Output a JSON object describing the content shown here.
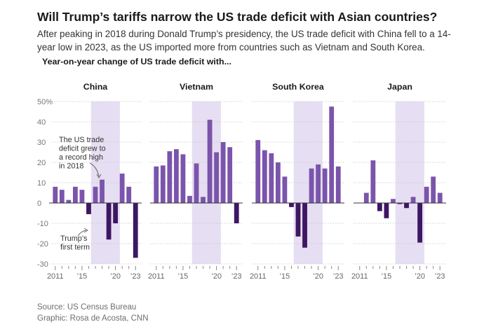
{
  "page": {
    "title": "Will Trump’s tariffs narrow the US trade deficit with Asian countries?",
    "subtitle": "After peaking in 2018 during Donald Trump’s presidency, the US trade deficit with China fell to a 14-year low in 2023, as the US imported more from countries such as Vietnam and South Korea.",
    "section_label": "Year-on-year change of US trade deficit with...",
    "source": "Source: US Census Bureau",
    "credit": "Graphic: Rosa de Acosta, CNN"
  },
  "colors": {
    "positive": "#7b54ab",
    "negative": "#3d1763",
    "shade": "#e6def2"
  },
  "chart_data": {
    "type": "bar",
    "x": [
      2011,
      2012,
      2013,
      2014,
      2015,
      2016,
      2017,
      2018,
      2019,
      2020,
      2021,
      2022,
      2023
    ],
    "ylim": [
      -30,
      50
    ],
    "yticks": [
      50,
      40,
      30,
      20,
      10,
      0,
      -10,
      -20,
      -30
    ],
    "ytick_labels": [
      "50%",
      "40",
      "30",
      "20",
      "10",
      "0",
      "-10",
      "-20",
      "-30"
    ],
    "xtick_labels_first": [
      "2011",
      "’15",
      "’20",
      "’23"
    ],
    "xtick_labels": [
      "2011",
      "’15",
      "’20",
      "’23"
    ],
    "xtick_years": [
      2011,
      2015,
      2020,
      2023
    ],
    "shade_years": [
      2017,
      2020
    ],
    "series": [
      {
        "name": "China",
        "values": [
          8,
          6.5,
          1.5,
          8,
          6.5,
          -5.5,
          8,
          11.5,
          -18,
          -10,
          14.5,
          8,
          -27
        ]
      },
      {
        "name": "Vietnam",
        "values": [
          18,
          18.5,
          25.5,
          26.5,
          24,
          3.5,
          19.5,
          3,
          41,
          25,
          30,
          27.5,
          -10
        ]
      },
      {
        "name": "South Korea",
        "values": [
          31,
          26,
          24.5,
          20,
          13,
          -2,
          -16.5,
          -22,
          17,
          19,
          17,
          47.5,
          18
        ]
      },
      {
        "name": "Japan",
        "values": [
          0,
          5,
          21,
          -4,
          -7.5,
          2,
          -0.5,
          -2.5,
          3,
          -19.5,
          8,
          13,
          5
        ]
      }
    ],
    "annotations": [
      {
        "panel": "China",
        "lines": [
          "The US trade",
          "deficit grew to",
          "a record high",
          "in 2018"
        ]
      },
      {
        "panel": "China",
        "lines": [
          "Trump’s",
          "first term"
        ]
      }
    ]
  }
}
